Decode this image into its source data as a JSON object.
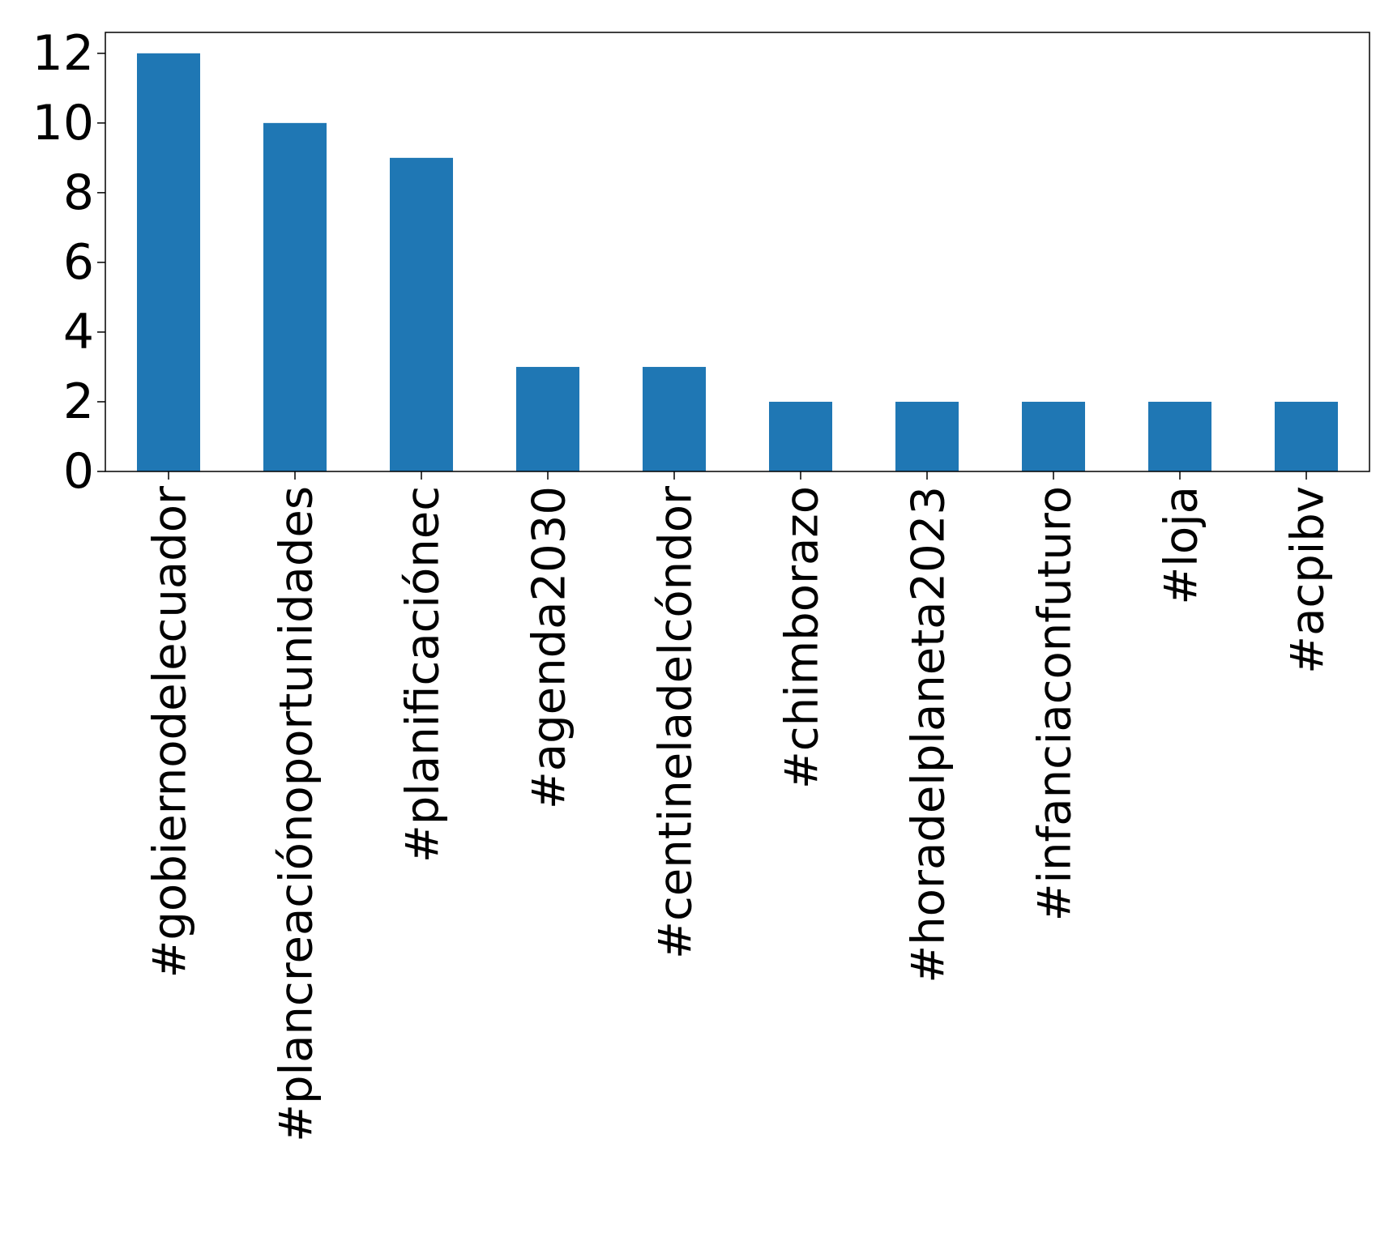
{
  "chart_data": {
    "type": "bar",
    "title": "",
    "xlabel": "",
    "ylabel": "",
    "categories": [
      "#gobiernodelecuador",
      "#plancreaciónoportunidades",
      "#planificaciónec",
      "#agenda2030",
      "#centineladelcóndor",
      "#chimborazo",
      "#horadelplaneta2023",
      "#infanciaconfuturo",
      "#loja",
      "#acpibv"
    ],
    "values": [
      12,
      10,
      9,
      3,
      3,
      2,
      2,
      2,
      2,
      2
    ],
    "ylim": [
      0,
      12.6
    ],
    "yticks": [
      "0",
      "2",
      "4",
      "6",
      "8",
      "10",
      "12"
    ],
    "grid": false,
    "legend": "none",
    "bar_color": "#1f77b4"
  }
}
